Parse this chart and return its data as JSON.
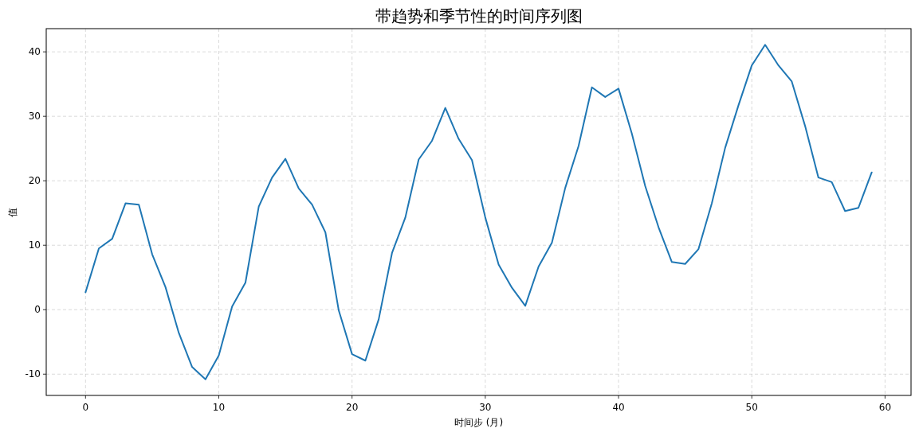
{
  "chart_data": {
    "type": "line",
    "title": "带趋势和季节性的时间序列图",
    "xlabel": "时间步 (月)",
    "ylabel": "值",
    "x": [
      0,
      1,
      2,
      3,
      4,
      5,
      6,
      7,
      8,
      9,
      10,
      11,
      12,
      13,
      14,
      15,
      16,
      17,
      18,
      19,
      20,
      21,
      22,
      23,
      24,
      25,
      26,
      27,
      28,
      29,
      30,
      31,
      32,
      33,
      34,
      35,
      36,
      37,
      38,
      39,
      40,
      41,
      42,
      43,
      44,
      45,
      46,
      47,
      48,
      49,
      50,
      51,
      52,
      53,
      54,
      55,
      56,
      57,
      58,
      59
    ],
    "series": [
      {
        "color": "#1f77b4",
        "values": [
          2.7,
          9.5,
          11.0,
          16.5,
          16.3,
          8.6,
          3.5,
          -3.6,
          -8.9,
          -10.8,
          -7.1,
          0.5,
          4.2,
          16.0,
          20.5,
          23.4,
          18.8,
          16.3,
          12.0,
          -0.1,
          -6.9,
          -7.9,
          -1.5,
          8.8,
          14.3,
          23.3,
          26.2,
          31.3,
          26.5,
          23.2,
          14.3,
          7.0,
          3.4,
          0.6,
          6.7,
          10.4,
          18.9,
          25.4,
          34.5,
          33.0,
          34.3,
          27.3,
          19.2,
          12.8,
          7.4,
          7.1,
          9.4,
          16.5,
          25.1,
          31.7,
          37.9,
          41.1,
          37.9,
          35.4,
          28.5,
          20.5,
          19.8,
          15.3,
          15.8,
          21.3
        ]
      }
    ],
    "xlim": [
      -2.95,
      61.95
    ],
    "ylim": [
      -13.3,
      43.6
    ],
    "xticks": [
      0,
      10,
      20,
      30,
      40,
      50,
      60
    ],
    "yticks": [
      -10,
      0,
      10,
      20,
      30,
      40
    ],
    "grid": true,
    "line_style": "solid",
    "marker": "none"
  }
}
